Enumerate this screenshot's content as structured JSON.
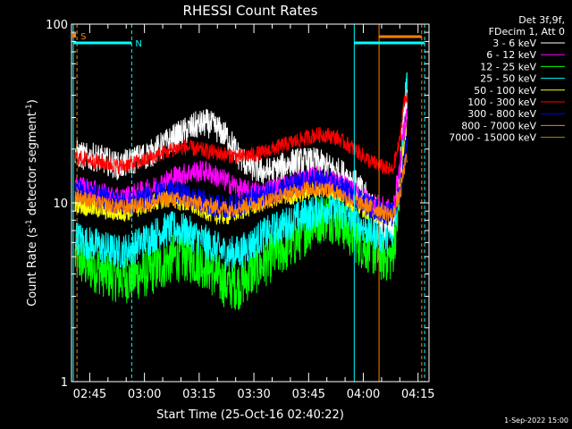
{
  "chart_data": {
    "type": "line",
    "title": "RHESSI Count Rates",
    "xlabel": "Start Time (25-Oct-16 02:40:22)",
    "ylabel_prefix": "Count Rate (s",
    "ylabel_sup": "-1",
    "ylabel_mid": " detector segment",
    "ylabel_sup2": "-1",
    "ylabel_suffix": ")",
    "yscale": "log",
    "ylim": [
      1,
      100
    ],
    "xlim": [
      160,
      258
    ],
    "x_unit": "minutes after 00:00 UT, 25-Oct-2016",
    "x_ticks": [
      {
        "value": 165,
        "label": "02:45"
      },
      {
        "value": 180,
        "label": "03:00"
      },
      {
        "value": 195,
        "label": "03:15"
      },
      {
        "value": 210,
        "label": "03:30"
      },
      {
        "value": 225,
        "label": "03:45"
      },
      {
        "value": 240,
        "label": "04:00"
      },
      {
        "value": 255,
        "label": "04:15"
      }
    ],
    "y_ticks": [
      {
        "value": 1,
        "label": "1"
      },
      {
        "value": 10,
        "label": "10"
      },
      {
        "value": 100,
        "label": "100"
      }
    ],
    "legend_header": [
      "Det 3f,9f,",
      "FDecim 1, Att 0"
    ],
    "legend_position": "right",
    "x": [
      161,
      164,
      167,
      170,
      173,
      176,
      179,
      182,
      185,
      188,
      191,
      194,
      197,
      200,
      203,
      206,
      209,
      212,
      215,
      218,
      221,
      224,
      227,
      230,
      233,
      236,
      239,
      242,
      245,
      248,
      250,
      251,
      252
    ],
    "series": [
      {
        "name": "3 - 6 keV",
        "color": "#ffffff",
        "values": [
          19,
          18,
          18,
          17,
          16,
          17,
          18,
          19,
          21,
          23,
          25,
          27,
          28,
          26,
          23,
          18,
          16,
          15,
          15,
          16,
          17,
          17,
          17,
          16,
          15,
          14,
          12,
          10,
          8,
          7,
          15,
          30,
          38
        ]
      },
      {
        "name": "6 - 12 keV",
        "color": "#ff00ff",
        "values": [
          12.5,
          12,
          11.5,
          11,
          10.5,
          11,
          11.5,
          12,
          13,
          14,
          14.5,
          15,
          15,
          14,
          13,
          12,
          11.5,
          11.5,
          12,
          12.5,
          13,
          13.5,
          14,
          13.5,
          13,
          12,
          11,
          10,
          9.5,
          9,
          15,
          25,
          32
        ]
      },
      {
        "name": "12 - 25 keV",
        "color": "#00ff00",
        "values": [
          5,
          4.5,
          4.3,
          4,
          3.8,
          3.8,
          4,
          4.2,
          4.5,
          5,
          5,
          4.8,
          4.5,
          3.8,
          3.5,
          3.5,
          4,
          4.5,
          5,
          5.5,
          6,
          7,
          8,
          8.5,
          8,
          7,
          6,
          5.5,
          5,
          5,
          10,
          22,
          45
        ]
      },
      {
        "name": "25 - 50 keV",
        "color": "#00ffff",
        "values": [
          6.5,
          6,
          5.8,
          5.5,
          5.3,
          5.5,
          6,
          6.5,
          7,
          7.2,
          7,
          6.5,
          6,
          5.5,
          5.2,
          5.3,
          5.8,
          6.5,
          7,
          7.5,
          8,
          8.5,
          9,
          9.5,
          9,
          8.5,
          7.5,
          7,
          6.5,
          6.5,
          12,
          28,
          50
        ]
      },
      {
        "name": "50 - 100 keV",
        "color": "#ffff00",
        "values": [
          10,
          9.5,
          9.3,
          9,
          8.8,
          9,
          9.5,
          10,
          10.5,
          10.5,
          10,
          9.5,
          9,
          8.5,
          8.5,
          9,
          9.5,
          10,
          10.5,
          11,
          11,
          11.5,
          12,
          12,
          11.5,
          10.5,
          9.5,
          9,
          8.5,
          8.5,
          12,
          20,
          28
        ]
      },
      {
        "name": "100 - 300 keV",
        "color": "#ff0000",
        "values": [
          18,
          17.5,
          17,
          16.5,
          16,
          16.5,
          17,
          18,
          19,
          20,
          20.5,
          20,
          19.5,
          19,
          18.5,
          18,
          18.5,
          19,
          20,
          21,
          22,
          23,
          24,
          24,
          23,
          21,
          19,
          17,
          16,
          15,
          22,
          35,
          40
        ]
      },
      {
        "name": "300 - 800 keV",
        "color": "#0000ff",
        "values": [
          12,
          11.5,
          11,
          10.5,
          10,
          10,
          10.5,
          11,
          11.5,
          11.5,
          11,
          10.5,
          10,
          9.5,
          9.5,
          9.8,
          10.3,
          11,
          11.5,
          12,
          12.5,
          13,
          13.5,
          13,
          12.5,
          11.5,
          10.5,
          9.5,
          9,
          8.5,
          11,
          17,
          22
        ]
      },
      {
        "name": "800 - 7000 keV",
        "color": "#ff8000",
        "values": [
          11,
          10.5,
          10,
          9.7,
          9.5,
          9.5,
          9.8,
          10,
          10.5,
          10.5,
          10.2,
          10,
          9.7,
          9.5,
          9.3,
          9.5,
          9.8,
          10,
          10.5,
          11,
          11.5,
          12,
          12,
          12,
          11.5,
          10.5,
          10,
          9.5,
          9,
          8.5,
          11,
          15,
          18
        ]
      },
      {
        "name": "7000 - 15000 keV",
        "color": "#b8860b",
        "values": [
          0,
          0,
          0,
          0,
          0,
          0,
          0,
          0,
          0,
          0,
          0,
          0,
          0,
          0,
          0,
          0,
          0,
          0,
          0,
          0,
          0,
          0,
          0,
          0,
          0,
          0,
          0,
          0,
          0,
          0,
          0,
          0,
          0
        ]
      }
    ],
    "markers": [
      {
        "x": 160.5,
        "color": "#00ffff",
        "style": "solid"
      },
      {
        "x": 161.5,
        "color": "#ff8000",
        "style": "dashed"
      },
      {
        "x": 176.5,
        "color": "#00ffff",
        "style": "dashed"
      },
      {
        "x": 237.5,
        "color": "#00ffff",
        "style": "solid"
      },
      {
        "x": 244.3,
        "color": "#ff8000",
        "style": "solid"
      },
      {
        "x": 256.0,
        "color": "#ff8000",
        "style": "dashed"
      },
      {
        "x": 256.8,
        "color": "#00ffff",
        "style": "dashed"
      }
    ],
    "bars": [
      {
        "x0": 160.5,
        "x1": 176.5,
        "color": "#00ffff",
        "label": "N"
      },
      {
        "x0": 237.5,
        "x1": 256.8,
        "color": "#00ffff"
      },
      {
        "x0": 244.3,
        "x1": 256.0,
        "color": "#ff8000"
      },
      {
        "x0": 160.5,
        "x1": 161.5,
        "color": "#ff8000",
        "label": "S"
      }
    ]
  },
  "footer_date": "1-Sep-2022 15:00"
}
